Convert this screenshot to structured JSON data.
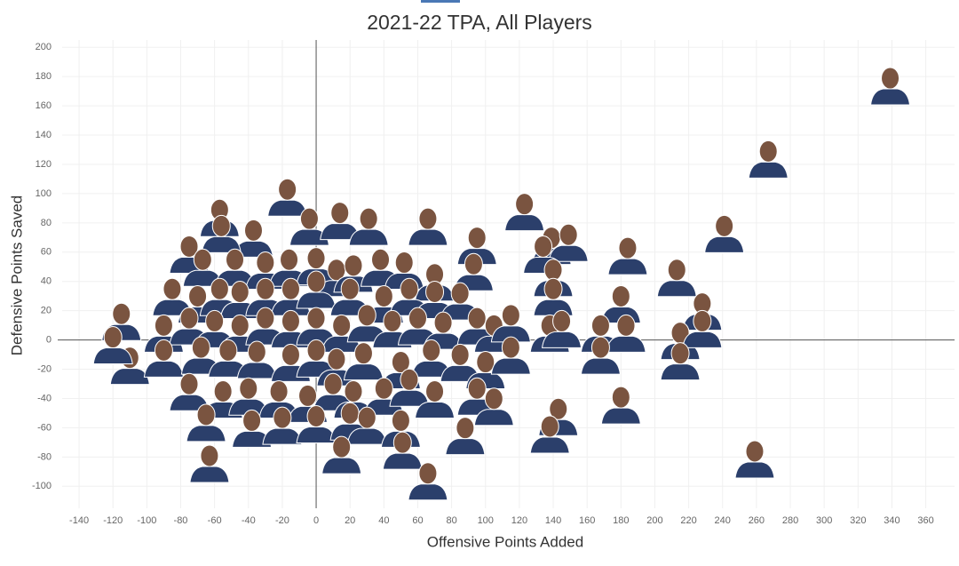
{
  "chart_data": {
    "type": "scatter",
    "title": "2021-22 TPA, All Players",
    "x_label": "Offensive Points Added",
    "y_label": "Defensive Points Saved",
    "xlim": [
      -150,
      377
    ],
    "ylim": [
      -115,
      205
    ],
    "xticks": [
      -140,
      -120,
      -100,
      -80,
      -60,
      -40,
      -20,
      0,
      20,
      40,
      60,
      80,
      100,
      120,
      140,
      160,
      180,
      200,
      220,
      240,
      260,
      280,
      300,
      320,
      340,
      360
    ],
    "yticks": [
      -100,
      -80,
      -60,
      -40,
      -20,
      0,
      20,
      40,
      60,
      80,
      100,
      120,
      140,
      160,
      180,
      200
    ],
    "grid": true,
    "zero_lines": true,
    "color": "#2b3f6b",
    "face_color": "#7a5440",
    "x": [
      339,
      267,
      259,
      241,
      184,
      213,
      123,
      -17,
      -57,
      -37,
      -56,
      -4,
      14,
      31,
      66,
      -75,
      95,
      139,
      149,
      -67,
      -48,
      -30,
      -16,
      0,
      12,
      22,
      38,
      52,
      70,
      93,
      134,
      140,
      -85,
      -70,
      -57,
      -45,
      -30,
      -15,
      0,
      20,
      40,
      55,
      70,
      85,
      140,
      180,
      228,
      -115,
      -90,
      -75,
      -60,
      -45,
      -30,
      -15,
      0,
      15,
      30,
      45,
      60,
      75,
      95,
      105,
      115,
      138,
      145,
      168,
      183,
      215,
      228,
      -110,
      -90,
      -68,
      -52,
      -35,
      -15,
      0,
      12,
      28,
      50,
      68,
      85,
      100,
      115,
      168,
      215,
      -75,
      -55,
      -40,
      -22,
      -5,
      10,
      22,
      40,
      55,
      70,
      95,
      105,
      143,
      180,
      -65,
      -38,
      -20,
      0,
      20,
      30,
      50,
      88,
      138,
      -63,
      15,
      51,
      66,
      -120
    ],
    "y": [
      174,
      124,
      -81,
      73,
      58,
      43,
      88,
      98,
      84,
      70,
      73,
      78,
      82,
      78,
      78,
      59,
      65,
      65,
      67,
      50,
      50,
      48,
      50,
      51,
      43,
      46,
      50,
      48,
      40,
      47,
      59,
      43,
      30,
      25,
      30,
      28,
      30,
      30,
      35,
      30,
      25,
      30,
      28,
      27,
      30,
      25,
      20,
      13,
      5,
      10,
      8,
      5,
      10,
      8,
      10,
      5,
      12,
      8,
      10,
      7,
      10,
      5,
      12,
      5,
      8,
      5,
      5,
      0,
      8,
      -17,
      -12,
      -10,
      -12,
      -13,
      -15,
      -12,
      -18,
      -14,
      -20,
      -12,
      -15,
      -20,
      -10,
      -10,
      -14,
      -35,
      -40,
      -38,
      -40,
      -43,
      -35,
      -40,
      -38,
      -32,
      -40,
      -38,
      -45,
      -52,
      -44,
      -56,
      -60,
      -58,
      -57,
      -55,
      -58,
      -60,
      -65,
      -64,
      -84,
      -78,
      -75,
      -96,
      -3
    ]
  }
}
